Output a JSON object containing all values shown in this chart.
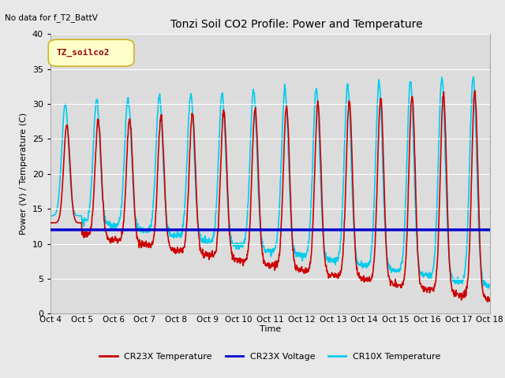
{
  "title": "Tonzi Soil CO2 Profile: Power and Temperature",
  "subtitle": "No data for f_T2_BattV",
  "ylabel": "Power (V) / Temperature (C)",
  "xlabel": "Time",
  "ylim": [
    0,
    40
  ],
  "fig_bg_color": "#e8e8e8",
  "plot_bg_color": "#dcdcdc",
  "grid_color": "#ffffff",
  "legend_box_label": "TZ_soilco2",
  "x_tick_labels": [
    "Oct 4",
    "Oct 5",
    "Oct 6",
    "Oct 7",
    "Oct 8",
    "Oct 9",
    "Oct 10",
    "Oct 11",
    "Oct 12",
    "Oct 13",
    "Oct 14",
    "Oct 15",
    "Oct 16",
    "Oct 17",
    "Oct 18"
  ],
  "voltage_value": 12.0,
  "cr23x_color": "#cc0000",
  "cr10x_color": "#00ccee",
  "voltage_color": "#0000cc",
  "cr23x_lw": 1.2,
  "cr10x_lw": 1.2,
  "voltage_lw": 2.5
}
